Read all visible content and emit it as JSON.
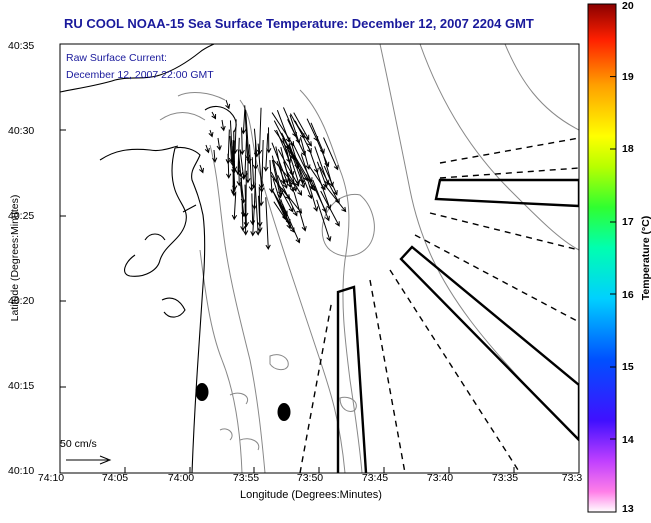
{
  "title": "RU COOL  NOAA-15  Sea Surface Temperature:  December 12, 2007 2204 GMT",
  "legend": {
    "line1": "Raw Surface Current:",
    "line2": "December 12, 2007 22:00 GMT"
  },
  "axes": {
    "xlabel": "Longitude (Degrees:Minutes)",
    "ylabel": "Latitude (Degrees:Minutes)",
    "xticks": [
      "74:10",
      "74:05",
      "74:00",
      "73:55",
      "73:50",
      "73:45",
      "73:40",
      "73:35",
      "73:3"
    ],
    "yticks": [
      "40:35",
      "40:30",
      "40:25",
      "40:20",
      "40:15",
      "40:10"
    ]
  },
  "colorbar": {
    "label": "Temperature (°C)",
    "ticks": [
      "20",
      "19",
      "18",
      "17",
      "16",
      "15",
      "14",
      "13"
    ],
    "min": 13,
    "max": 20
  },
  "scale_arrow": {
    "label": "50 cm/s"
  },
  "colors": {
    "title": "#1a1a9c",
    "coast": "#000000",
    "bathymetry": "#888888"
  }
}
